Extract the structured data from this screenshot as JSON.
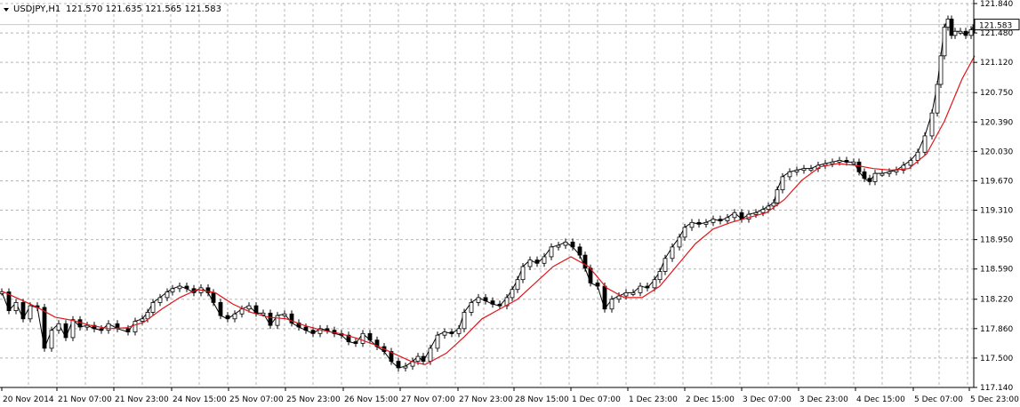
{
  "header": {
    "symbol": "USDJPY,H1",
    "ohlc": "121.570 121.635 121.565 121.583"
  },
  "chart_data": {
    "type": "candlestick",
    "title": "USDJPY,H1",
    "grid": true,
    "ylim": [
      117.14,
      121.84
    ],
    "y_ticks": [
      "121.840",
      "121.480",
      "121.120",
      "120.750",
      "120.390",
      "120.030",
      "119.670",
      "119.310",
      "118.950",
      "118.590",
      "118.220",
      "117.860",
      "117.500",
      "117.140"
    ],
    "x_ticks": [
      "20 Nov 2014",
      "21 Nov 07:00",
      "21 Nov 23:00",
      "24 Nov 15:00",
      "25 Nov 07:00",
      "25 Nov 23:00",
      "26 Nov 15:00",
      "27 Nov 07:00",
      "27 Nov 23:00",
      "28 Nov 15:00",
      "1 Dec 07:00",
      "1 Dec 23:00",
      "2 Dec 15:00",
      "3 Dec 07:00",
      "3 Dec 23:00",
      "4 Dec 15:00",
      "5 Dec 07:00",
      "5 Dec 23:00"
    ],
    "last_price": "121.583",
    "last_price_value": 121.583,
    "path_points": [
      [
        0,
        118.31
      ],
      [
        8,
        118.08
      ],
      [
        16,
        118.18
      ],
      [
        24,
        117.98
      ],
      [
        32,
        118.14
      ],
      [
        40,
        118.12
      ],
      [
        48,
        117.62
      ],
      [
        56,
        117.84
      ],
      [
        64,
        117.92
      ],
      [
        72,
        117.75
      ],
      [
        80,
        117.97
      ],
      [
        88,
        117.88
      ],
      [
        96,
        117.9
      ],
      [
        104,
        117.86
      ],
      [
        112,
        117.84
      ],
      [
        120,
        117.92
      ],
      [
        130,
        117.86
      ],
      [
        142,
        117.82
      ],
      [
        150,
        117.95
      ],
      [
        158,
        117.98
      ],
      [
        164,
        118.06
      ],
      [
        170,
        118.18
      ],
      [
        178,
        118.24
      ],
      [
        186,
        118.31
      ],
      [
        192,
        118.35
      ],
      [
        200,
        118.38
      ],
      [
        208,
        118.35
      ],
      [
        216,
        118.3
      ],
      [
        224,
        118.36
      ],
      [
        232,
        118.3
      ],
      [
        238,
        118.18
      ],
      [
        246,
        118.02
      ],
      [
        254,
        117.98
      ],
      [
        262,
        118.04
      ],
      [
        270,
        118.1
      ],
      [
        278,
        118.14
      ],
      [
        286,
        118.05
      ],
      [
        294,
        118.05
      ],
      [
        302,
        117.9
      ],
      [
        310,
        118.02
      ],
      [
        318,
        118.04
      ],
      [
        326,
        117.93
      ],
      [
        334,
        117.88
      ],
      [
        342,
        117.84
      ],
      [
        350,
        117.8
      ],
      [
        358,
        117.86
      ],
      [
        366,
        117.84
      ],
      [
        374,
        117.8
      ],
      [
        382,
        117.78
      ],
      [
        390,
        117.7
      ],
      [
        398,
        117.68
      ],
      [
        406,
        117.8
      ],
      [
        414,
        117.72
      ],
      [
        422,
        117.64
      ],
      [
        430,
        117.58
      ],
      [
        438,
        117.46
      ],
      [
        446,
        117.38
      ],
      [
        454,
        117.4
      ],
      [
        462,
        117.46
      ],
      [
        468,
        117.52
      ],
      [
        474,
        117.46
      ],
      [
        482,
        117.62
      ],
      [
        490,
        117.78
      ],
      [
        498,
        117.82
      ],
      [
        506,
        117.8
      ],
      [
        514,
        117.86
      ],
      [
        520,
        118.06
      ],
      [
        528,
        118.18
      ],
      [
        536,
        118.24
      ],
      [
        544,
        118.2
      ],
      [
        552,
        118.16
      ],
      [
        560,
        118.14
      ],
      [
        568,
        118.24
      ],
      [
        574,
        118.34
      ],
      [
        580,
        118.46
      ],
      [
        586,
        118.62
      ],
      [
        594,
        118.7
      ],
      [
        602,
        118.66
      ],
      [
        610,
        118.74
      ],
      [
        618,
        118.86
      ],
      [
        626,
        118.88
      ],
      [
        634,
        118.92
      ],
      [
        642,
        118.86
      ],
      [
        650,
        118.76
      ],
      [
        656,
        118.6
      ],
      [
        662,
        118.42
      ],
      [
        670,
        118.38
      ],
      [
        678,
        118.1
      ],
      [
        686,
        118.22
      ],
      [
        694,
        118.26
      ],
      [
        702,
        118.3
      ],
      [
        710,
        118.3
      ],
      [
        718,
        118.38
      ],
      [
        726,
        118.36
      ],
      [
        734,
        118.46
      ],
      [
        740,
        118.56
      ],
      [
        746,
        118.72
      ],
      [
        754,
        118.86
      ],
      [
        762,
        118.98
      ],
      [
        768,
        119.1
      ],
      [
        776,
        119.16
      ],
      [
        784,
        119.14
      ],
      [
        792,
        119.16
      ],
      [
        800,
        119.2
      ],
      [
        808,
        119.18
      ],
      [
        816,
        119.22
      ],
      [
        824,
        119.28
      ],
      [
        832,
        119.2
      ],
      [
        840,
        119.26
      ],
      [
        848,
        119.28
      ],
      [
        856,
        119.32
      ],
      [
        862,
        119.36
      ],
      [
        868,
        119.4
      ],
      [
        872,
        119.56
      ],
      [
        878,
        119.72
      ],
      [
        886,
        119.78
      ],
      [
        894,
        119.8
      ],
      [
        902,
        119.82
      ],
      [
        910,
        119.82
      ],
      [
        918,
        119.86
      ],
      [
        926,
        119.88
      ],
      [
        934,
        119.9
      ],
      [
        942,
        119.92
      ],
      [
        950,
        119.9
      ],
      [
        958,
        119.9
      ],
      [
        964,
        119.78
      ],
      [
        970,
        119.7
      ],
      [
        976,
        119.66
      ],
      [
        982,
        119.76
      ],
      [
        990,
        119.76
      ],
      [
        998,
        119.78
      ],
      [
        1006,
        119.8
      ],
      [
        1014,
        119.86
      ],
      [
        1022,
        119.92
      ],
      [
        1030,
        120.02
      ],
      [
        1038,
        120.22
      ],
      [
        1046,
        120.5
      ],
      [
        1052,
        120.85
      ],
      [
        1056,
        121.2
      ],
      [
        1060,
        121.55
      ],
      [
        1064,
        121.65
      ],
      [
        1068,
        121.45
      ],
      [
        1072,
        121.5
      ],
      [
        1078,
        121.5
      ],
      [
        1084,
        121.45
      ],
      [
        1090,
        121.52
      ],
      [
        1094,
        121.58
      ]
    ],
    "ma_points": [
      [
        0,
        118.32
      ],
      [
        20,
        118.22
      ],
      [
        40,
        118.12
      ],
      [
        60,
        118.0
      ],
      [
        80,
        117.96
      ],
      [
        100,
        117.9
      ],
      [
        120,
        117.86
      ],
      [
        140,
        117.87
      ],
      [
        160,
        117.94
      ],
      [
        180,
        118.1
      ],
      [
        200,
        118.24
      ],
      [
        220,
        118.34
      ],
      [
        240,
        118.3
      ],
      [
        260,
        118.16
      ],
      [
        280,
        118.06
      ],
      [
        300,
        118.0
      ],
      [
        320,
        117.98
      ],
      [
        340,
        117.9
      ],
      [
        360,
        117.84
      ],
      [
        380,
        117.8
      ],
      [
        400,
        117.74
      ],
      [
        420,
        117.66
      ],
      [
        440,
        117.56
      ],
      [
        460,
        117.46
      ],
      [
        476,
        117.42
      ],
      [
        500,
        117.56
      ],
      [
        520,
        117.76
      ],
      [
        540,
        117.98
      ],
      [
        560,
        118.1
      ],
      [
        580,
        118.22
      ],
      [
        600,
        118.42
      ],
      [
        620,
        118.62
      ],
      [
        640,
        118.74
      ],
      [
        660,
        118.62
      ],
      [
        680,
        118.36
      ],
      [
        700,
        118.24
      ],
      [
        720,
        118.24
      ],
      [
        740,
        118.38
      ],
      [
        760,
        118.64
      ],
      [
        780,
        118.9
      ],
      [
        800,
        119.08
      ],
      [
        820,
        119.16
      ],
      [
        840,
        119.22
      ],
      [
        860,
        119.28
      ],
      [
        880,
        119.44
      ],
      [
        900,
        119.68
      ],
      [
        920,
        119.84
      ],
      [
        940,
        119.88
      ],
      [
        960,
        119.86
      ],
      [
        980,
        119.82
      ],
      [
        1000,
        119.8
      ],
      [
        1020,
        119.82
      ],
      [
        1040,
        120.0
      ],
      [
        1060,
        120.4
      ],
      [
        1080,
        120.92
      ],
      [
        1094,
        121.2
      ]
    ]
  }
}
